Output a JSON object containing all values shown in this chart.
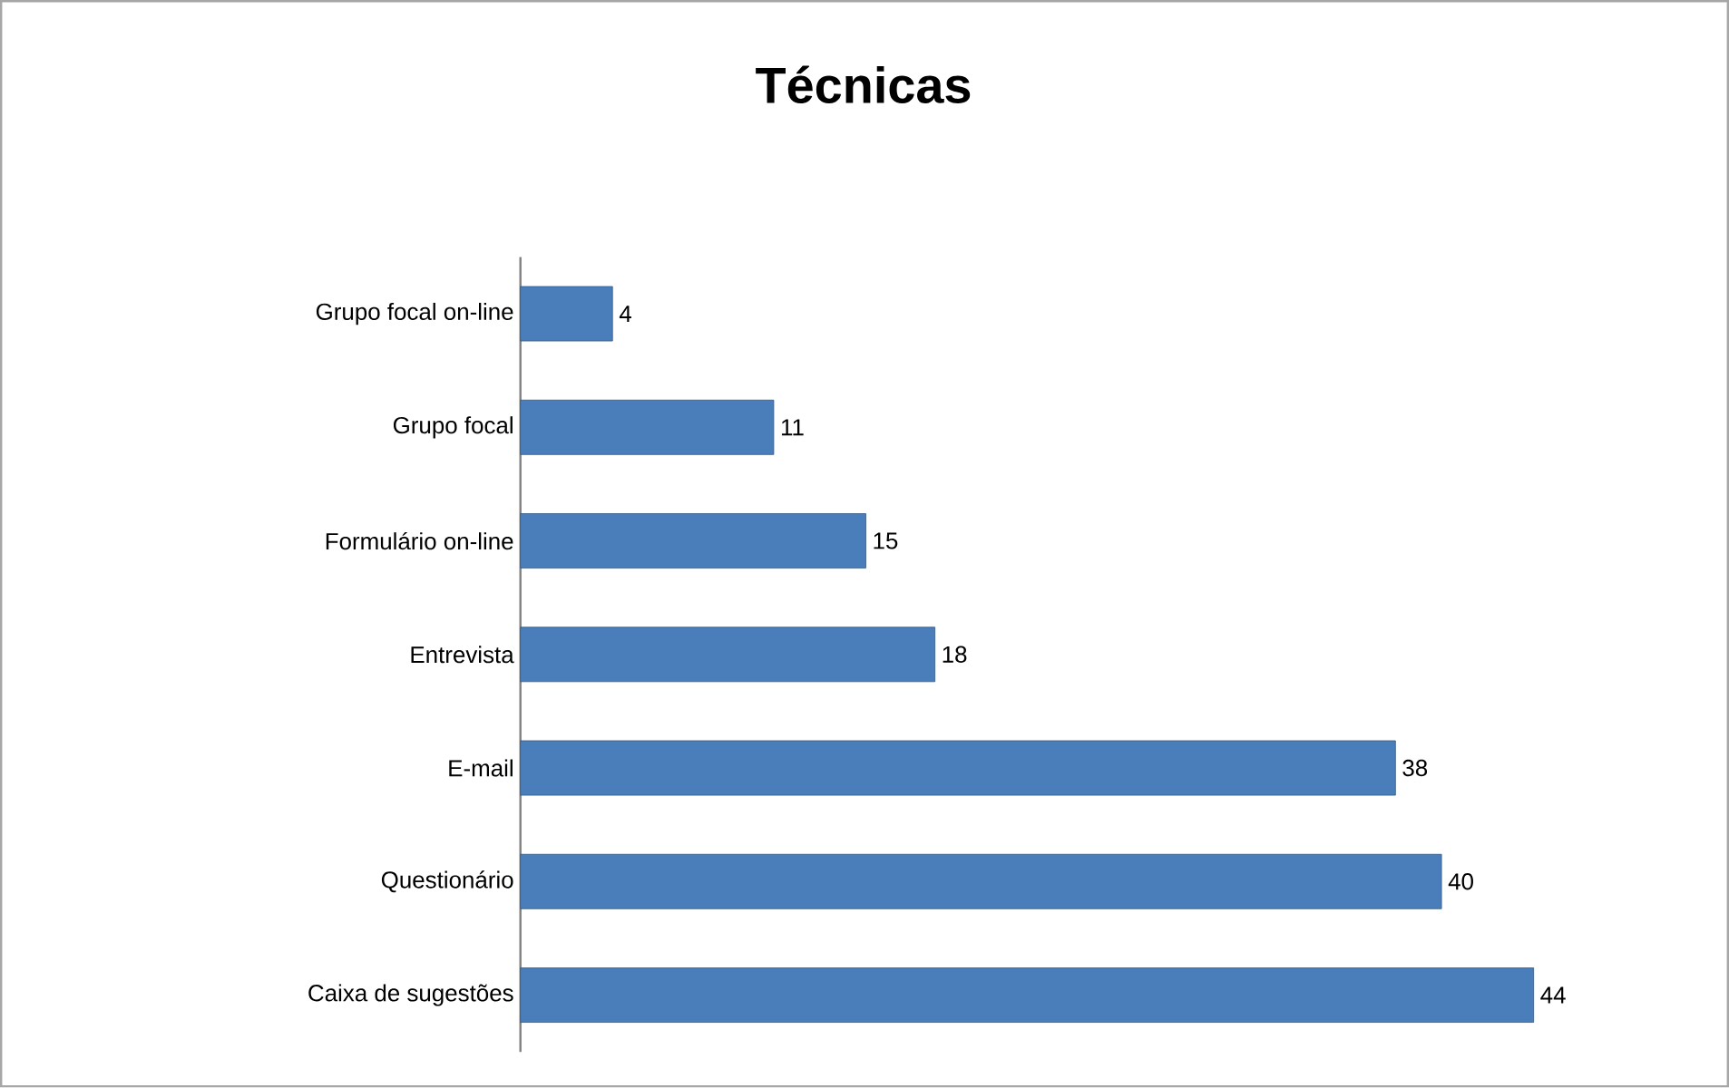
{
  "chart_data": {
    "type": "bar",
    "title": "Técnicas",
    "orientation": "horizontal",
    "categories": [
      "Grupo focal on-line",
      "Grupo focal",
      "Formulário on-line",
      "Entrevista",
      "E-mail",
      "Questionário",
      "Caixa de sugestões"
    ],
    "values": [
      4,
      11,
      15,
      18,
      38,
      40,
      44
    ],
    "color": "#4a7ebb",
    "data_labels": true
  }
}
